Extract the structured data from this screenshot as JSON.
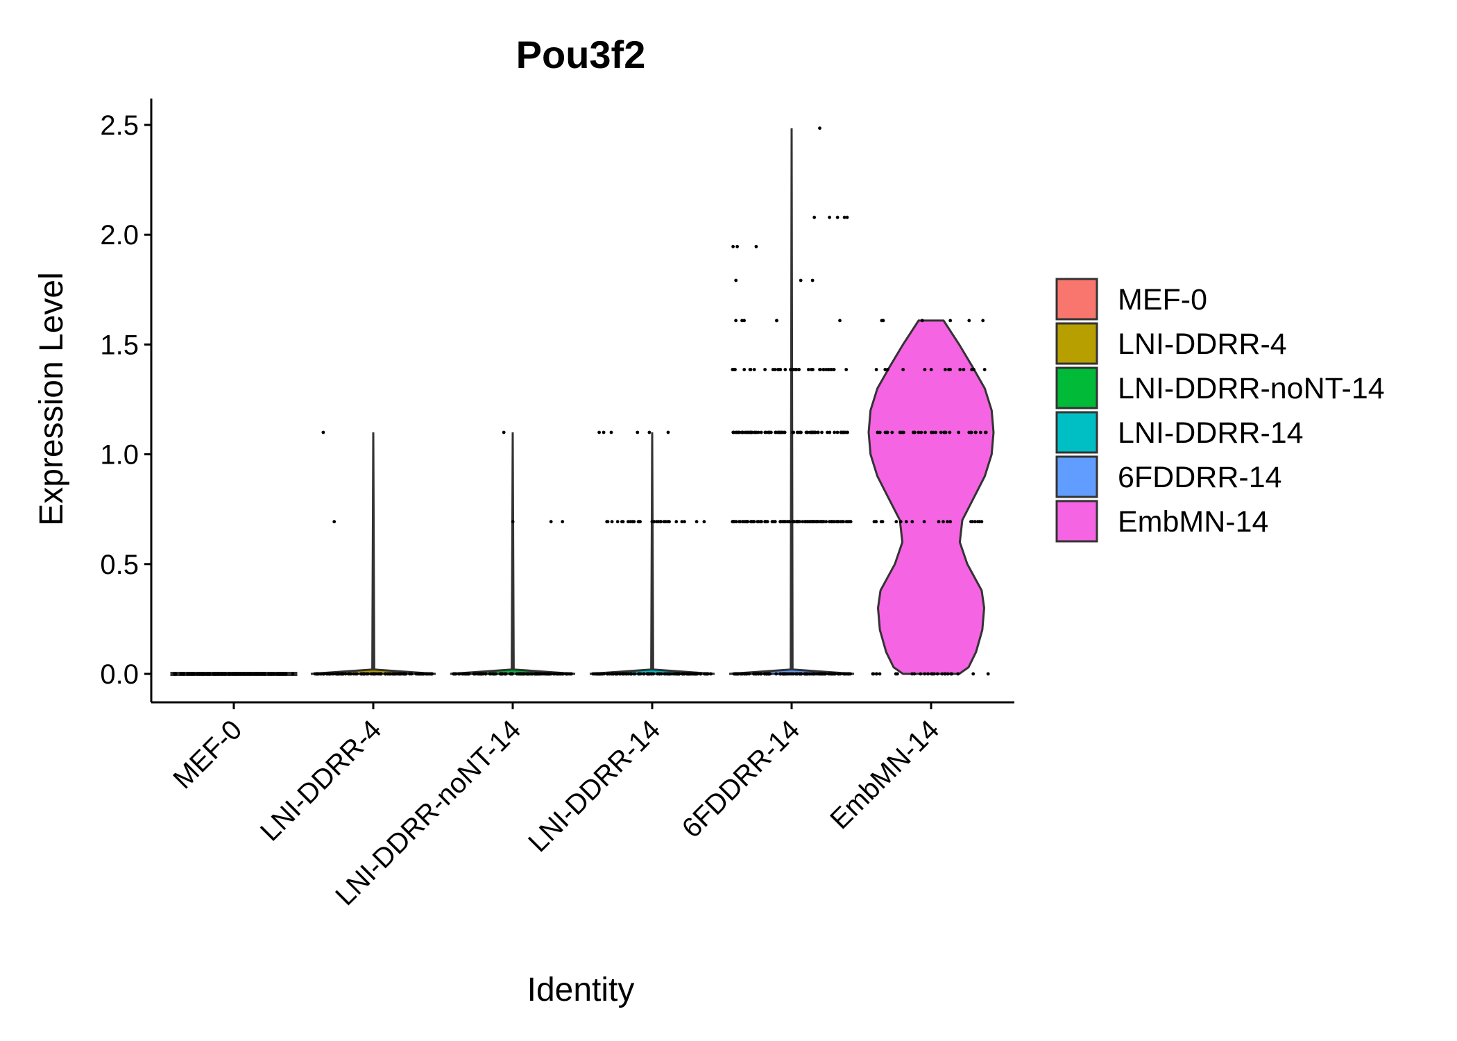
{
  "chart_data": {
    "type": "violin",
    "title": "Pou3f2",
    "xlabel": "Identity",
    "ylabel": "Expression Level",
    "ylim": [
      -0.12,
      2.62
    ],
    "yticks": [
      0.0,
      0.5,
      1.0,
      1.5,
      2.0,
      2.5
    ],
    "ytick_labels": [
      "0.0",
      "0.5",
      "1.0",
      "1.5",
      "2.0",
      "2.5"
    ],
    "legend_position": "right",
    "grid": false,
    "categories": [
      "MEF-0",
      "LNI-DDRR-4",
      "LNI-DDRR-noNT-14",
      "LNI-DDRR-14",
      "6FDDRR-14",
      "EmbMN-14"
    ],
    "series": [
      {
        "name": "MEF-0",
        "color": "#F8766D",
        "max": 0.0,
        "profile": [
          [
            0.0,
            1.0
          ]
        ],
        "points": [
          {
            "y": 0.0,
            "count": 120
          }
        ]
      },
      {
        "name": "LNI-DDRR-4",
        "color": "#B79F00",
        "max": 1.1,
        "profile": [
          [
            0.0,
            1.0
          ],
          [
            0.02,
            0.015
          ],
          [
            1.1,
            0.0
          ]
        ],
        "points": [
          {
            "y": 0.0,
            "count": 120
          },
          {
            "y": 0.693,
            "count": 1
          },
          {
            "y": 1.1,
            "count": 1
          }
        ]
      },
      {
        "name": "LNI-DDRR-noNT-14",
        "color": "#00BA38",
        "max": 1.1,
        "profile": [
          [
            0.0,
            1.0
          ],
          [
            0.02,
            0.015
          ],
          [
            1.1,
            0.0
          ]
        ],
        "points": [
          {
            "y": 0.0,
            "count": 120
          },
          {
            "y": 0.693,
            "count": 3
          },
          {
            "y": 1.1,
            "count": 1
          }
        ]
      },
      {
        "name": "LNI-DDRR-14",
        "color": "#00BFC4",
        "max": 1.1,
        "profile": [
          [
            0.0,
            1.0
          ],
          [
            0.02,
            0.015
          ],
          [
            1.1,
            0.0
          ]
        ],
        "points": [
          {
            "y": 0.0,
            "count": 120
          },
          {
            "y": 0.693,
            "count": 30
          },
          {
            "y": 1.1,
            "count": 6
          }
        ]
      },
      {
        "name": "6FDDRR-14",
        "color": "#619CFF",
        "max": 2.485,
        "profile": [
          [
            0.0,
            1.0
          ],
          [
            0.02,
            0.015
          ],
          [
            2.485,
            0.0
          ]
        ],
        "points": [
          {
            "y": 0.0,
            "count": 120
          },
          {
            "y": 0.693,
            "count": 110
          },
          {
            "y": 1.1,
            "count": 80
          },
          {
            "y": 1.386,
            "count": 40
          },
          {
            "y": 1.609,
            "count": 6
          },
          {
            "y": 1.792,
            "count": 3
          },
          {
            "y": 1.946,
            "count": 3
          },
          {
            "y": 2.079,
            "count": 5
          },
          {
            "y": 2.485,
            "count": 1
          }
        ]
      },
      {
        "name": "EmbMN-14",
        "color": "#F564E3",
        "max": 1.609,
        "profile": [
          [
            0.0,
            0.45
          ],
          [
            0.03,
            0.6
          ],
          [
            0.1,
            0.72
          ],
          [
            0.2,
            0.82
          ],
          [
            0.3,
            0.85
          ],
          [
            0.38,
            0.81
          ],
          [
            0.5,
            0.58
          ],
          [
            0.6,
            0.46
          ],
          [
            0.7,
            0.5
          ],
          [
            0.8,
            0.68
          ],
          [
            0.9,
            0.86
          ],
          [
            1.0,
            0.97
          ],
          [
            1.1,
            1.0
          ],
          [
            1.2,
            0.97
          ],
          [
            1.3,
            0.86
          ],
          [
            1.4,
            0.66
          ],
          [
            1.5,
            0.45
          ],
          [
            1.609,
            0.2
          ]
        ],
        "points": [
          {
            "y": 0.0,
            "count": 25
          },
          {
            "y": 0.693,
            "count": 20
          },
          {
            "y": 1.1,
            "count": 35
          },
          {
            "y": 1.386,
            "count": 14
          },
          {
            "y": 1.609,
            "count": 6
          }
        ]
      }
    ]
  }
}
